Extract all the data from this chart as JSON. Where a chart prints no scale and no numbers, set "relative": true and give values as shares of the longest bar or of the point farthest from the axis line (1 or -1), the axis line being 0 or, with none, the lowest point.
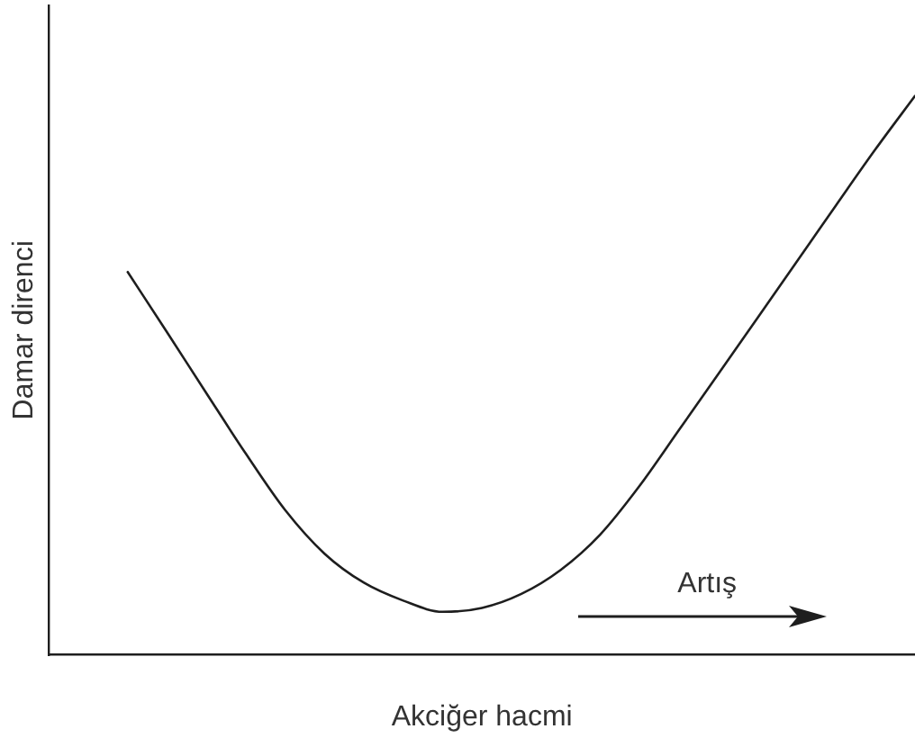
{
  "chart_data": {
    "type": "line",
    "relative": true,
    "xlabel": "Akciğer hacmi",
    "ylabel": "Damar direnci",
    "categories": [
      null,
      null,
      null,
      null,
      null,
      null,
      null,
      null,
      null,
      null,
      null,
      null,
      null,
      null,
      null,
      null,
      null,
      null,
      null,
      null,
      null,
      null,
      null
    ],
    "values": [
      null,
      null,
      0.685,
      0.577,
      0.468,
      0.36,
      0.259,
      0.181,
      0.129,
      0.097,
      0.077,
      0.084,
      0.109,
      0.152,
      0.215,
      0.302,
      0.402,
      0.502,
      0.603,
      0.704,
      0.805,
      0.905,
      1
    ],
    "color": "#1e1e1e",
    "marker": "none",
    "grid": false,
    "legend": false,
    "annotations": [
      "Artış"
    ]
  }
}
